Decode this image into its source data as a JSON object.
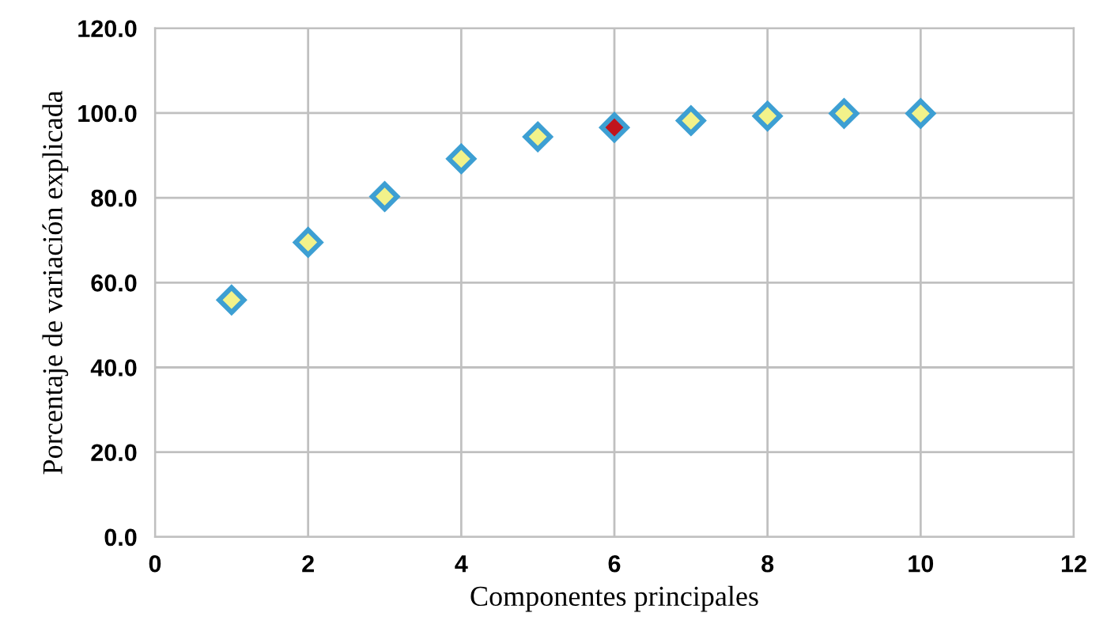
{
  "chart_data": {
    "type": "scatter",
    "xlabel": "Componentes principales",
    "ylabel": "Porcentaje de variación explicada",
    "x": [
      1,
      2,
      3,
      4,
      5,
      6,
      7,
      8,
      9,
      10
    ],
    "series": [
      {
        "color": "#3d9fd3",
        "colors": [
          "#f2f28a",
          "#f2f28a",
          "#f2f28a",
          "#f2f28a",
          "#f2f28a",
          "#c0141c",
          "#f2f28a",
          "#f2f28a",
          "#f2f28a",
          "#f2f28a"
        ],
        "values": [
          55.9,
          69.5,
          80.3,
          89.2,
          94.4,
          96.6,
          98.2,
          99.3,
          99.9,
          99.9
        ]
      }
    ],
    "xlim": [
      0,
      12
    ],
    "xticks": [
      0,
      2,
      4,
      6,
      8,
      10,
      12
    ],
    "ylim": [
      0,
      120
    ],
    "yticks": [
      {
        "value": 0,
        "label": "0.0"
      },
      {
        "value": 20,
        "label": "20.0"
      },
      {
        "value": 40,
        "label": "40.0"
      },
      {
        "value": 60,
        "label": "60.0"
      },
      {
        "value": 80,
        "label": "80.0"
      },
      {
        "value": 100,
        "label": "100.0"
      },
      {
        "value": 120,
        "label": "120.0"
      }
    ],
    "grid": true,
    "marker": "diamond"
  }
}
